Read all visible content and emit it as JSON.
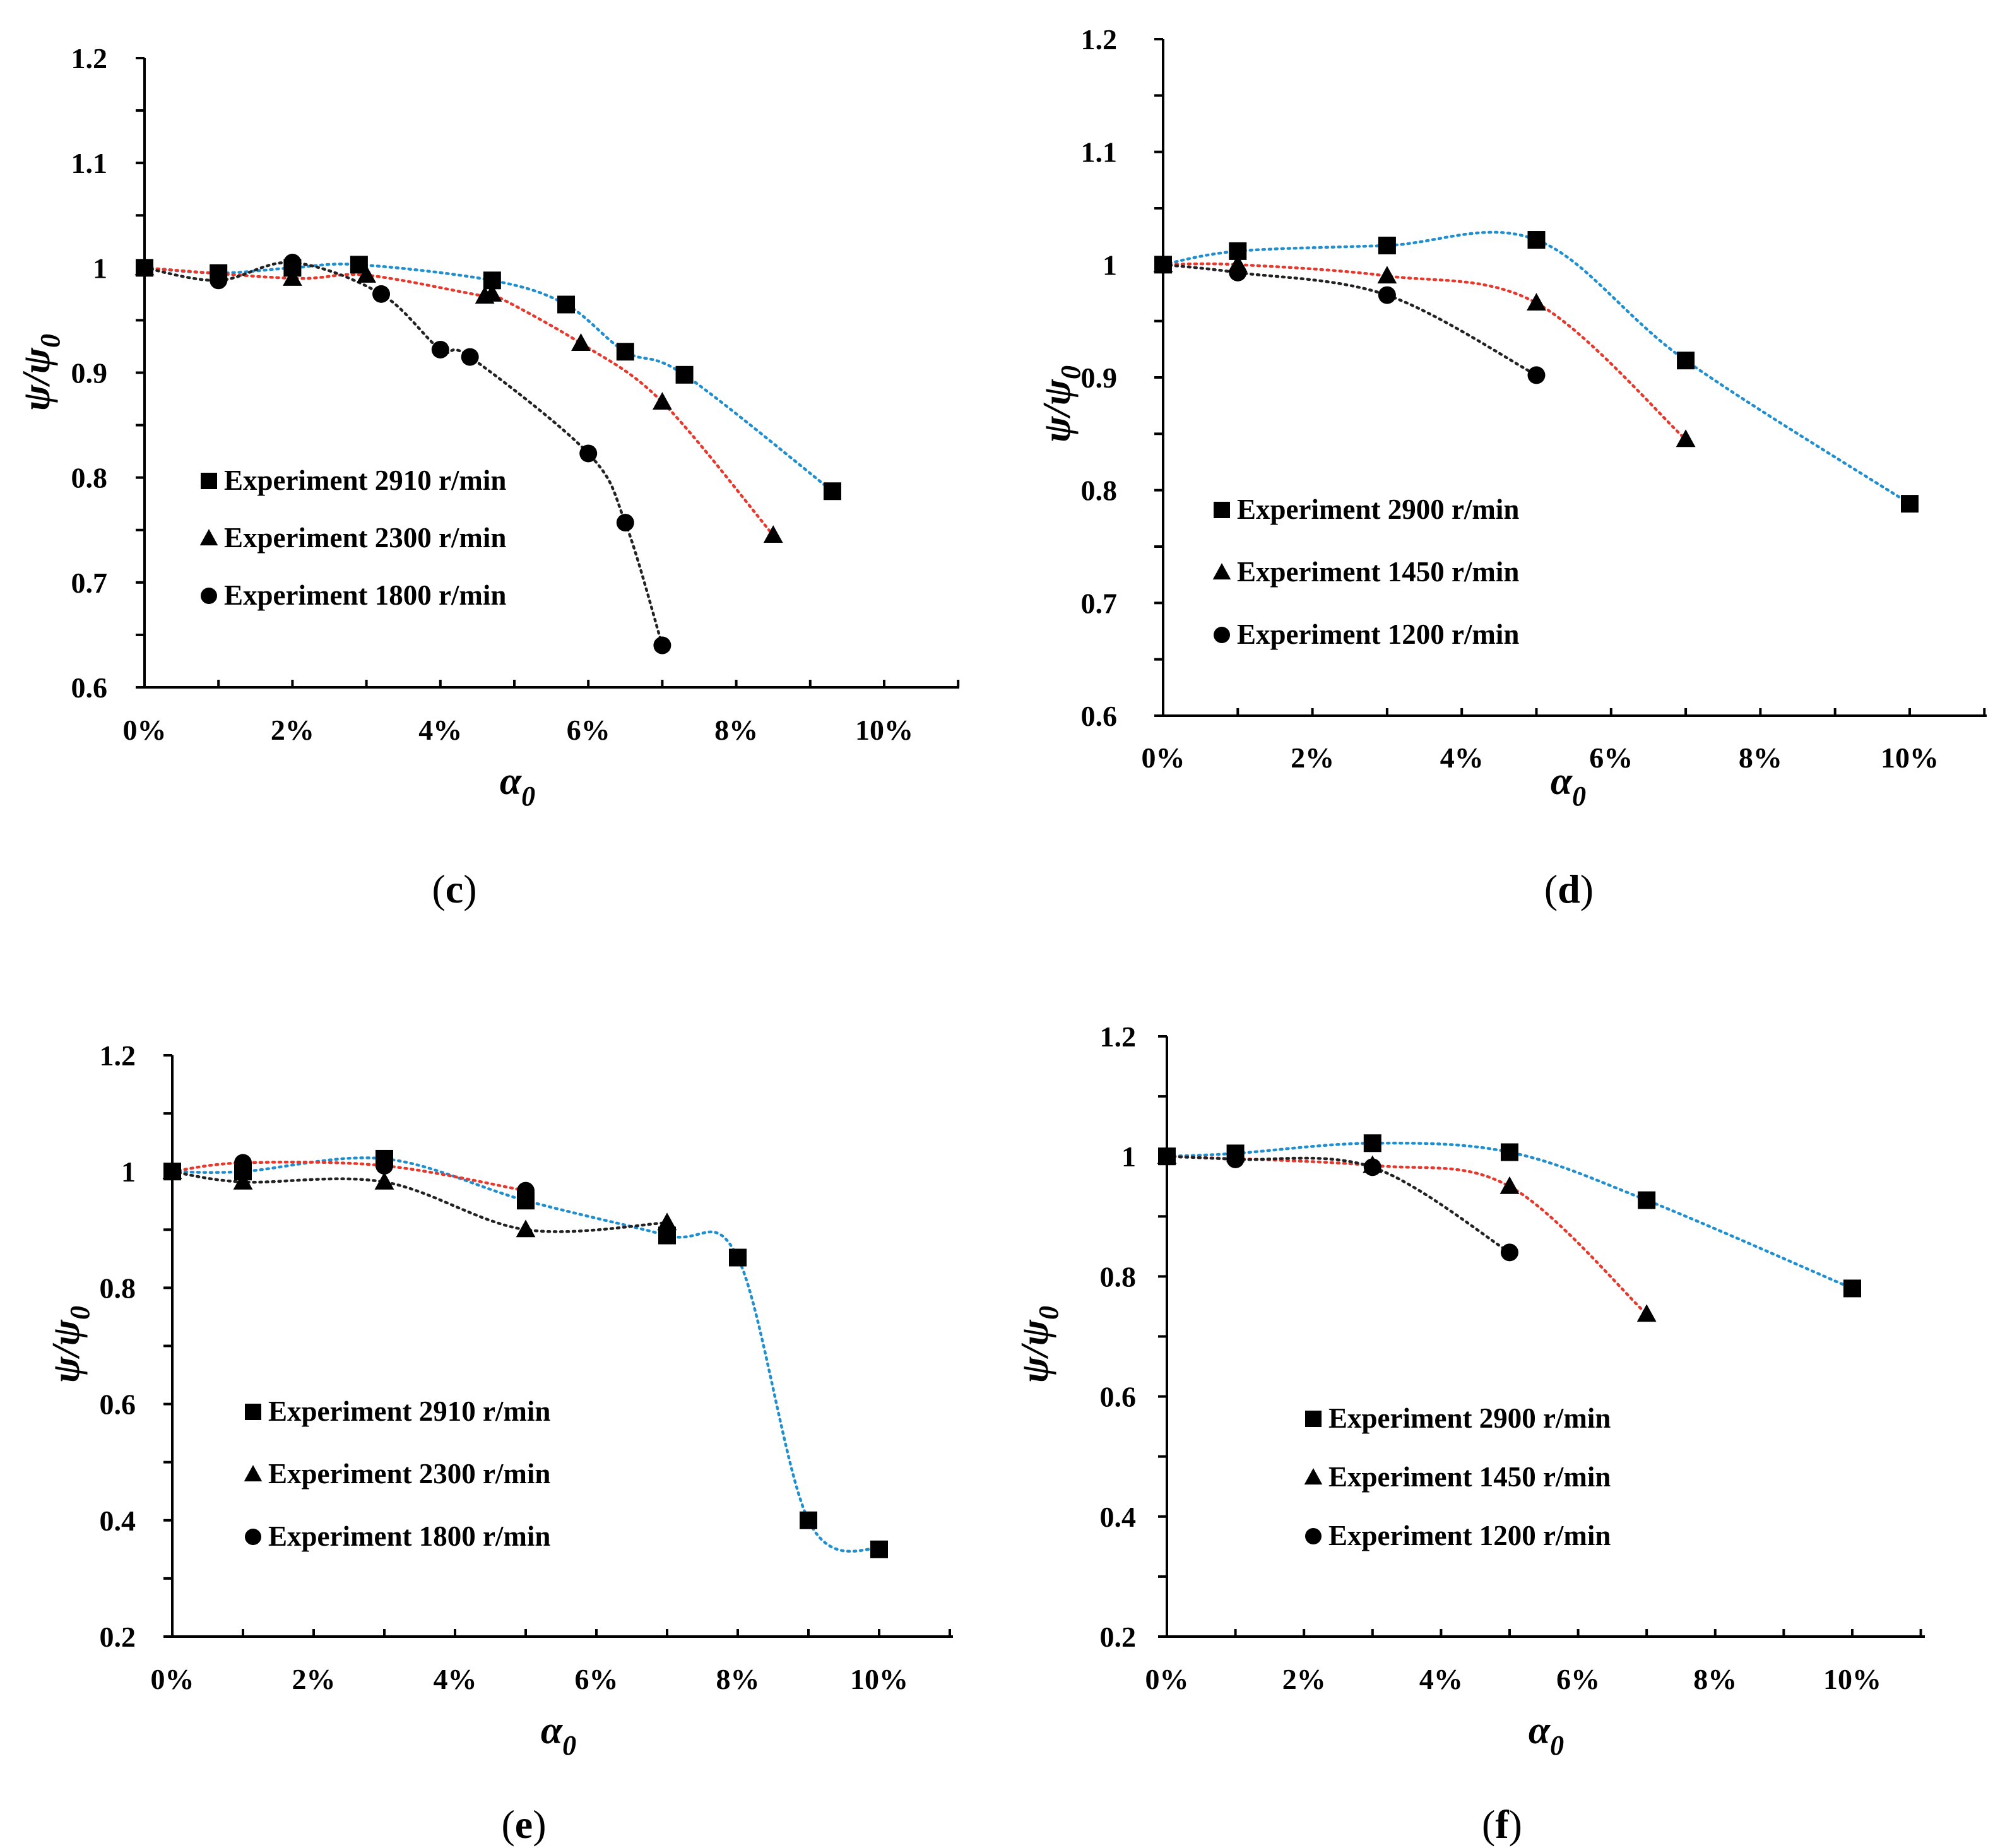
{
  "colors": {
    "trend_blue": "#1f8fd0",
    "trend_red": "#e8382c",
    "trend_black": "#222222",
    "marker": "#000000"
  },
  "chart_data": [
    {
      "id": "c",
      "caption": "c",
      "type": "scatter",
      "xlabel": "α",
      "xlabel_sub": "0",
      "ylabel": "ψ/ψ",
      "ylabel_sub": "0",
      "xlim": [
        0,
        11
      ],
      "ylim": [
        0.6,
        1.2
      ],
      "xticks": [
        0,
        2,
        4,
        6,
        8,
        10
      ],
      "xtick_labels": [
        "0%",
        "2%",
        "4%",
        "6%",
        "8%",
        "10%"
      ],
      "yticks": [
        0.6,
        0.7,
        0.8,
        0.9,
        1.0,
        1.1,
        1.2
      ],
      "ytick_labels": [
        "0.6",
        "0.7",
        "0.8",
        "0.9",
        "1",
        "1.1",
        "1.2"
      ],
      "legend_placement": "lower-left",
      "series": [
        {
          "name": "Experiment 2910 r/min",
          "marker": "square",
          "trend": "trend_blue",
          "x": [
            0,
            1,
            2,
            2.9,
            4.7,
            5.7,
            6.5,
            7.3,
            9.3
          ],
          "y": [
            1.0,
            0.995,
            1.0,
            1.003,
            0.988,
            0.965,
            0.92,
            0.898,
            0.787
          ]
        },
        {
          "name": "Experiment 2300 r/min",
          "marker": "triangle",
          "trend": "trend_red",
          "x": [
            0,
            2,
            3,
            4.6,
            4.7,
            5.9,
            7.0,
            8.5
          ],
          "y": [
            1.0,
            0.99,
            0.993,
            0.973,
            0.975,
            0.928,
            0.872,
            0.745
          ]
        },
        {
          "name": "Experiment 1800 r/min",
          "marker": "circle",
          "trend": "trend_black",
          "x": [
            0,
            1,
            2,
            3.2,
            4,
            4.4,
            6,
            6.5,
            7.0
          ],
          "y": [
            1.0,
            0.988,
            1.005,
            0.975,
            0.922,
            0.915,
            0.823,
            0.757,
            0.64
          ]
        }
      ]
    },
    {
      "id": "d",
      "caption": "d",
      "type": "scatter",
      "xlabel": "α",
      "xlabel_sub": "0",
      "ylabel": "ψ/ψ",
      "ylabel_sub": "0",
      "xlim": [
        0,
        11
      ],
      "ylim": [
        0.6,
        1.2
      ],
      "xticks": [
        0,
        2,
        4,
        6,
        8,
        10
      ],
      "xtick_labels": [
        "0%",
        "2%",
        "4%",
        "6%",
        "8%",
        "10%"
      ],
      "yticks": [
        0.6,
        0.7,
        0.8,
        0.9,
        1.0,
        1.1,
        1.2
      ],
      "ytick_labels": [
        "0.6",
        "0.7",
        "0.8",
        "0.9",
        "1",
        "1.1",
        "1.2"
      ],
      "legend_placement": "lower-left",
      "series": [
        {
          "name": "Experiment 2900 r/min",
          "marker": "square",
          "trend": "trend_blue",
          "x": [
            0,
            1,
            3,
            5,
            7,
            10
          ],
          "y": [
            1.0,
            1.012,
            1.017,
            1.022,
            0.915,
            0.788
          ]
        },
        {
          "name": "Experiment 1450 r/min",
          "marker": "triangle",
          "trend": "trend_red",
          "x": [
            0,
            1,
            3,
            5,
            7
          ],
          "y": [
            1.0,
            1.0,
            0.99,
            0.966,
            0.845
          ]
        },
        {
          "name": "Experiment 1200 r/min",
          "marker": "circle",
          "trend": "trend_black",
          "x": [
            0,
            1,
            3,
            5
          ],
          "y": [
            1.0,
            0.993,
            0.973,
            0.902
          ]
        }
      ]
    },
    {
      "id": "e",
      "caption": "e",
      "type": "scatter",
      "xlabel": "α",
      "xlabel_sub": "0",
      "ylabel": "ψ/ψ",
      "ylabel_sub": "0",
      "xlim": [
        0,
        11
      ],
      "ylim": [
        0.2,
        1.2
      ],
      "xticks": [
        0,
        2,
        4,
        6,
        8,
        10
      ],
      "xtick_labels": [
        "0%",
        "2%",
        "4%",
        "6%",
        "8%",
        "10%"
      ],
      "yticks": [
        0.2,
        0.4,
        0.6,
        0.8,
        1.0,
        1.2
      ],
      "ytick_labels": [
        "0.2",
        "0.4",
        "0.6",
        "0.8",
        "1",
        "1.2"
      ],
      "legend_placement": "lower-left",
      "series": [
        {
          "name": "Experiment 2910 r/min",
          "marker": "square",
          "trend": "trend_blue",
          "x": [
            0,
            1,
            3,
            5,
            7,
            8,
            9,
            10
          ],
          "y": [
            1.0,
            1.0,
            1.022,
            0.95,
            0.89,
            0.852,
            0.4,
            0.35
          ]
        },
        {
          "name": "Experiment 2300 r/min",
          "marker": "triangle",
          "trend": "trend_black",
          "x": [
            0,
            1,
            3,
            5,
            7
          ],
          "y": [
            1.0,
            0.982,
            0.982,
            0.9,
            0.912
          ]
        },
        {
          "name": "Experiment 1800 r/min",
          "marker": "circle",
          "trend": "trend_red",
          "x": [
            0,
            1,
            3,
            5
          ],
          "y": [
            1.0,
            1.015,
            1.01,
            0.967
          ]
        }
      ]
    },
    {
      "id": "f",
      "caption": "f",
      "type": "scatter",
      "xlabel": "α",
      "xlabel_sub": "0",
      "ylabel": "ψ/ψ",
      "ylabel_sub": "0",
      "xlim": [
        0,
        11
      ],
      "ylim": [
        0.2,
        1.2
      ],
      "xticks": [
        0,
        2,
        4,
        6,
        8,
        10
      ],
      "xtick_labels": [
        "0%",
        "2%",
        "4%",
        "6%",
        "8%",
        "10%"
      ],
      "yticks": [
        0.2,
        0.4,
        0.6,
        0.8,
        1.0,
        1.2
      ],
      "ytick_labels": [
        "0.2",
        "0.4",
        "0.6",
        "0.8",
        "1",
        "1.2"
      ],
      "legend_placement": "lower-left",
      "series": [
        {
          "name": "Experiment 2900 r/min",
          "marker": "square",
          "trend": "trend_blue",
          "x": [
            0,
            1,
            3,
            5,
            7,
            10
          ],
          "y": [
            1.0,
            1.005,
            1.022,
            1.007,
            0.927,
            0.78
          ]
        },
        {
          "name": "Experiment 1450 r/min",
          "marker": "triangle",
          "trend": "trend_red",
          "x": [
            0,
            3,
            5,
            7
          ],
          "y": [
            1.0,
            0.985,
            0.95,
            0.737
          ]
        },
        {
          "name": "Experiment 1200 r/min",
          "marker": "circle",
          "trend": "trend_black",
          "x": [
            0,
            1,
            3,
            5
          ],
          "y": [
            1.0,
            0.995,
            0.982,
            0.84
          ]
        }
      ]
    }
  ]
}
